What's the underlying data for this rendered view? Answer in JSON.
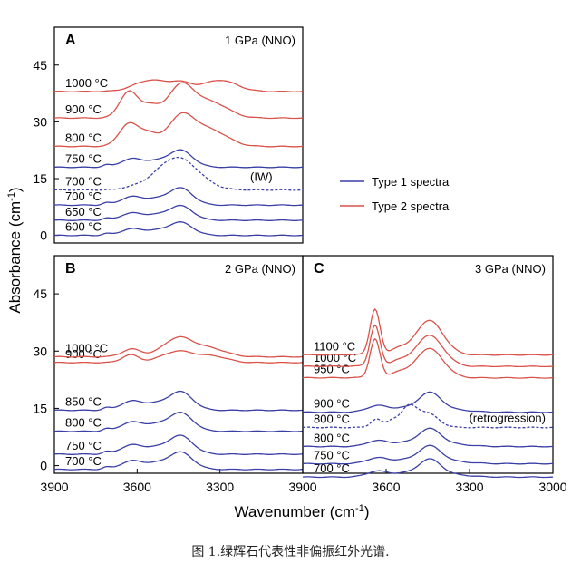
{
  "chart_data": {
    "type": "line",
    "x_axis": {
      "label": "Wavenumber (cm",
      "label_sup": "-1",
      "label_close": ")",
      "panelAB": {
        "range": [
          3900,
          3000
        ],
        "ticks": [
          3900,
          3600,
          3300
        ]
      },
      "panelC": {
        "range": [
          3900,
          3000
        ],
        "ticks": [
          3900,
          3600,
          3300,
          3000
        ]
      },
      "shared_tick_label": "3900"
    },
    "y_axis": {
      "label": "Absorbance (cm",
      "label_sup": "-1",
      "label_close": ")",
      "panelA": {
        "range": [
          -2,
          55
        ],
        "ticks": [
          0,
          15,
          30,
          45
        ]
      },
      "panelB": {
        "range": [
          -2,
          55
        ],
        "ticks": [
          0,
          15,
          30,
          45
        ]
      }
    },
    "legend": {
      "position": "right",
      "items": [
        {
          "label": "Type 1 spectra",
          "color": "#3a3fa6"
        },
        {
          "label": "Type 2 spectra",
          "color": "#d9534a"
        }
      ]
    },
    "colors": {
      "type1": "#3a3fa6",
      "type2": "#d9534a",
      "axis": "#000000"
    },
    "panels": [
      {
        "id": "A",
        "title": "1 GPa (NNO)",
        "series": [
          {
            "label": "600 °C",
            "type": 1,
            "offset": 0,
            "shape": "t1",
            "amp": 1.0
          },
          {
            "label": "650 °C",
            "type": 1,
            "offset": 4,
            "shape": "t1",
            "amp": 1.1
          },
          {
            "label": "700 °C",
            "type": 1,
            "offset": 8,
            "shape": "t1",
            "amp": 1.3
          },
          {
            "label": "700 °C",
            "type": 1,
            "offset": 12,
            "shape": "iw",
            "amp": 1.0,
            "dashed": true,
            "annotation": "(IW)"
          },
          {
            "label": "750 °C",
            "type": 1,
            "offset": 18,
            "shape": "t1",
            "amp": 1.3
          },
          {
            "label": "800 °C",
            "type": 2,
            "offset": 23.5,
            "shape": "t2a",
            "amp": 1.0
          },
          {
            "label": "900 °C",
            "type": 2,
            "offset": 31,
            "shape": "t2b",
            "amp": 1.0
          },
          {
            "label": "1000 °C",
            "type": 2,
            "offset": 38,
            "shape": "t2c",
            "amp": 1.0
          }
        ]
      },
      {
        "id": "B",
        "title": "2 GPa (NNO)",
        "series": [
          {
            "label": "700 °C",
            "type": 1,
            "offset": -1,
            "shape": "t1",
            "amp": 1.3
          },
          {
            "label": "750 °C",
            "type": 1,
            "offset": 3,
            "shape": "t1",
            "amp": 1.4
          },
          {
            "label": "800 °C",
            "type": 1,
            "offset": 9,
            "shape": "t1",
            "amp": 1.4
          },
          {
            "label": "850 °C",
            "type": 1,
            "offset": 14.5,
            "shape": "t1",
            "amp": 1.4
          },
          {
            "label": "900 °C",
            "type": 2,
            "offset": 27,
            "shape": "t2d",
            "amp": 1.0
          },
          {
            "label": "1000 °C",
            "type": 2,
            "offset": 28.5,
            "shape": "t2e",
            "amp": 1.0
          }
        ]
      },
      {
        "id": "C",
        "title": "3 GPa (NNO)",
        "series": [
          {
            "label": "700 °C",
            "type": 1,
            "offset": -3,
            "shape": "t1c",
            "amp": 1.0
          },
          {
            "label": "750 °C",
            "type": 1,
            "offset": 0.5,
            "shape": "t1c",
            "amp": 1.0
          },
          {
            "label": "800 °C",
            "type": 1,
            "offset": 5,
            "shape": "t1c",
            "amp": 1.0
          },
          {
            "label": "800 °C",
            "type": 1,
            "offset": 10,
            "shape": "retro",
            "amp": 1.0,
            "dashed": true,
            "annotation": "(retrogression)"
          },
          {
            "label": "900 °C",
            "type": 1,
            "offset": 14,
            "shape": "t1c",
            "amp": 1.1
          },
          {
            "label": "950 °C",
            "type": 2,
            "offset": 23,
            "shape": "t2f",
            "amp": 0.85
          },
          {
            "label": "1000 °C",
            "type": 2,
            "offset": 26,
            "shape": "t2f",
            "amp": 0.9
          },
          {
            "label": "1100 °C",
            "type": 2,
            "offset": 29,
            "shape": "t2f",
            "amp": 1.0
          }
        ]
      }
    ]
  },
  "caption": "图 1.绿辉石代表性非偏振红外光谱."
}
